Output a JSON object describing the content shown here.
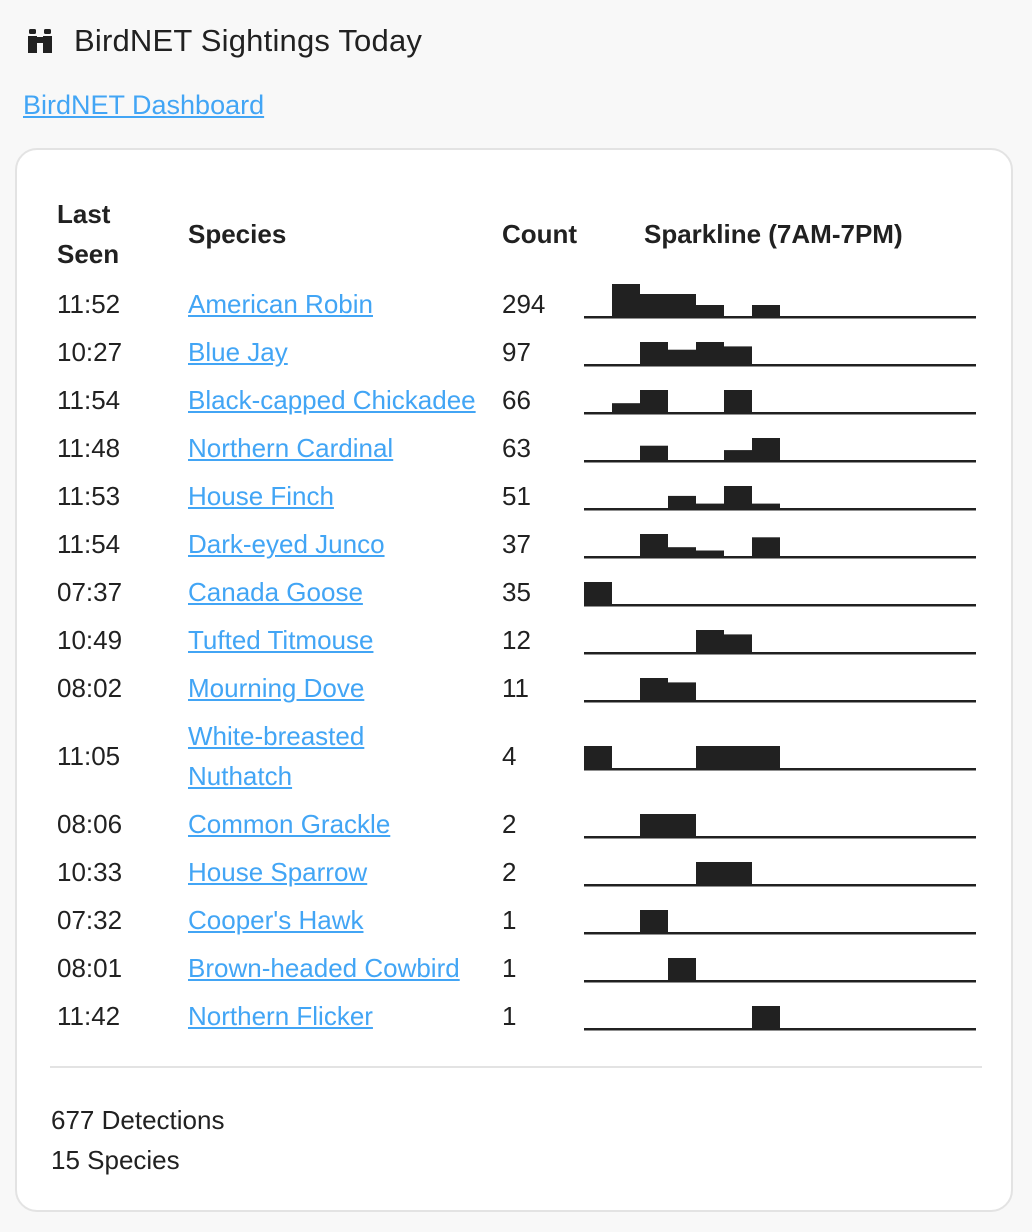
{
  "header": {
    "title": "BirdNET Sightings Today",
    "icon": "binoculars-icon"
  },
  "dashboard_link": "BirdNET Dashboard",
  "table": {
    "columns": [
      "Last\nSeen",
      "Species",
      "Count",
      "Sparkline (7AM-7PM)"
    ],
    "col_last": "Last",
    "col_seen": "Seen",
    "col_species": "Species",
    "col_count": "Count",
    "col_spark": "Sparkline (7AM-7PM)",
    "rows": [
      {
        "time": "11:52",
        "species": "American Robin",
        "count": "294",
        "spark": [
          0,
          2,
          1,
          1,
          0.5,
          0,
          0.5,
          0,
          0,
          0,
          0,
          0,
          0,
          0
        ]
      },
      {
        "time": "10:27",
        "species": "Blue Jay",
        "count": "97",
        "spark": [
          0,
          0,
          1,
          0.65,
          1,
          0.8,
          0,
          0,
          0,
          0,
          0,
          0,
          0,
          0
        ]
      },
      {
        "time": "11:54",
        "species": "Black-capped Chickadee",
        "count": "66",
        "spark": [
          0,
          0.4,
          1,
          0,
          0,
          1,
          0,
          0,
          0,
          0,
          0,
          0,
          0,
          0
        ]
      },
      {
        "time": "11:48",
        "species": "Northern Cardinal",
        "count": "63",
        "spark": [
          0,
          0,
          0.65,
          0,
          0,
          0.45,
          1,
          0,
          0,
          0,
          0,
          0,
          0,
          0
        ]
      },
      {
        "time": "11:53",
        "species": "House Finch",
        "count": "51",
        "spark": [
          0,
          0,
          0,
          0.55,
          0.2,
          1,
          0.2,
          0,
          0,
          0,
          0,
          0,
          0,
          0
        ]
      },
      {
        "time": "11:54",
        "species": "Dark-eyed Junco",
        "count": "37",
        "spark": [
          0,
          0,
          1,
          0.4,
          0.25,
          0,
          0.85,
          0,
          0,
          0,
          0,
          0,
          0,
          0
        ]
      },
      {
        "time": "07:37",
        "species": "Canada Goose",
        "count": "35",
        "spark": [
          1,
          0,
          0,
          0,
          0,
          0,
          0,
          0,
          0,
          0,
          0,
          0,
          0,
          0
        ]
      },
      {
        "time": "10:49",
        "species": "Tufted Titmouse",
        "count": "12",
        "spark": [
          0,
          0,
          0,
          0,
          1,
          0.8,
          0,
          0,
          0,
          0,
          0,
          0,
          0,
          0
        ]
      },
      {
        "time": "08:02",
        "species": "Mourning Dove",
        "count": "11",
        "spark": [
          0,
          0,
          1,
          0.8,
          0,
          0,
          0,
          0,
          0,
          0,
          0,
          0,
          0,
          0
        ]
      },
      {
        "time": "11:05",
        "species": "White-breasted Nuthatch",
        "species_l1": "White-breasted",
        "species_l2": "Nuthatch",
        "count": "4",
        "spark": [
          1,
          0,
          0,
          0,
          1,
          1,
          1,
          0,
          0,
          0,
          0,
          0,
          0,
          0
        ]
      },
      {
        "time": "08:06",
        "species": "Common Grackle",
        "count": "2",
        "spark": [
          0,
          0,
          1,
          1,
          0,
          0,
          0,
          0,
          0,
          0,
          0,
          0,
          0,
          0
        ]
      },
      {
        "time": "10:33",
        "species": "House Sparrow",
        "count": "2",
        "spark": [
          0,
          0,
          0,
          0,
          1,
          1,
          0,
          0,
          0,
          0,
          0,
          0,
          0,
          0
        ]
      },
      {
        "time": "07:32",
        "species": "Cooper's Hawk",
        "count": "1",
        "spark": [
          0,
          0,
          1,
          0,
          0,
          0,
          0,
          0,
          0,
          0,
          0,
          0,
          0,
          0
        ]
      },
      {
        "time": "08:01",
        "species": "Brown-headed Cowbird",
        "count": "1",
        "spark": [
          0,
          0,
          0,
          1,
          0,
          0,
          0,
          0,
          0,
          0,
          0,
          0,
          0,
          0
        ]
      },
      {
        "time": "11:42",
        "species": "Northern Flicker",
        "count": "1",
        "spark": [
          0,
          0,
          0,
          0,
          0,
          0,
          1,
          0,
          0,
          0,
          0,
          0,
          0,
          0
        ]
      }
    ]
  },
  "summary": {
    "detections": "677 Detections",
    "species": "15 Species"
  },
  "colors": {
    "link": "#42a5f5",
    "spark": "#212121",
    "card_border": "#e3e3e3"
  }
}
